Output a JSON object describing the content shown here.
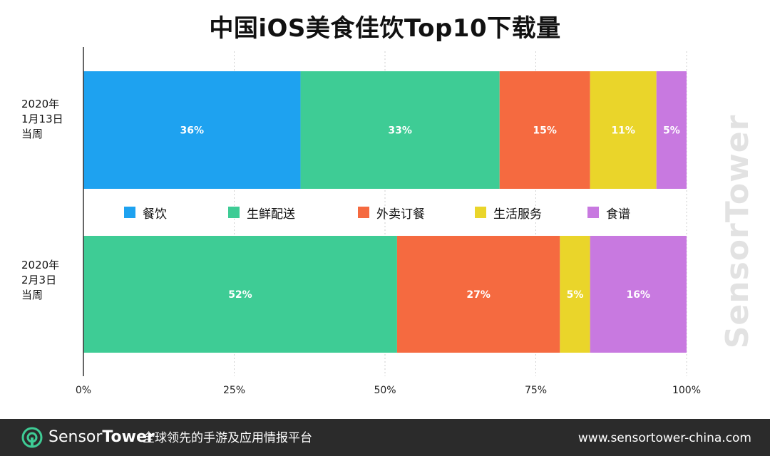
{
  "chart_data": {
    "type": "bar",
    "orientation": "horizontal-stacked-100",
    "title": "中国iOS美食佳饮Top10下载量",
    "categories": [
      "2020年\n1月13日\n当周",
      "2020年\n2月3日\n当周"
    ],
    "series": [
      {
        "name": "餐饮",
        "color": "#1ea2f0",
        "values": [
          36,
          0
        ],
        "labels": [
          "36%",
          ""
        ]
      },
      {
        "name": "生鲜配送",
        "color": "#3ecc95",
        "values": [
          33,
          52
        ],
        "labels": [
          "33%",
          "52%"
        ]
      },
      {
        "name": "外卖订餐",
        "color": "#f56a40",
        "values": [
          15,
          27
        ],
        "labels": [
          "15%",
          "27%"
        ]
      },
      {
        "name": "生活服务",
        "color": "#ead52a",
        "values": [
          11,
          5
        ],
        "labels": [
          "11%",
          "5%"
        ]
      },
      {
        "name": "食谱",
        "color": "#c879e0",
        "values": [
          5,
          16
        ],
        "labels": [
          "5%",
          "16%"
        ]
      }
    ],
    "xlim": [
      0,
      100
    ],
    "x_ticks": [
      "0%",
      "25%",
      "50%",
      "75%",
      "100%"
    ],
    "grid": true,
    "legend_position": "between-bars"
  },
  "category_labels": [
    {
      "line1": "2020年",
      "line2": "1月13日",
      "line3": "当周"
    },
    {
      "line1": "2020年",
      "line2": "2月3日",
      "line3": "当周"
    }
  ],
  "watermark": "SensorTower",
  "footer": {
    "brand_part1": "Sensor",
    "brand_part2": "Tower",
    "slogan": "全球领先的手游及应用情报平台",
    "url": "www.sensortower-china.com"
  }
}
